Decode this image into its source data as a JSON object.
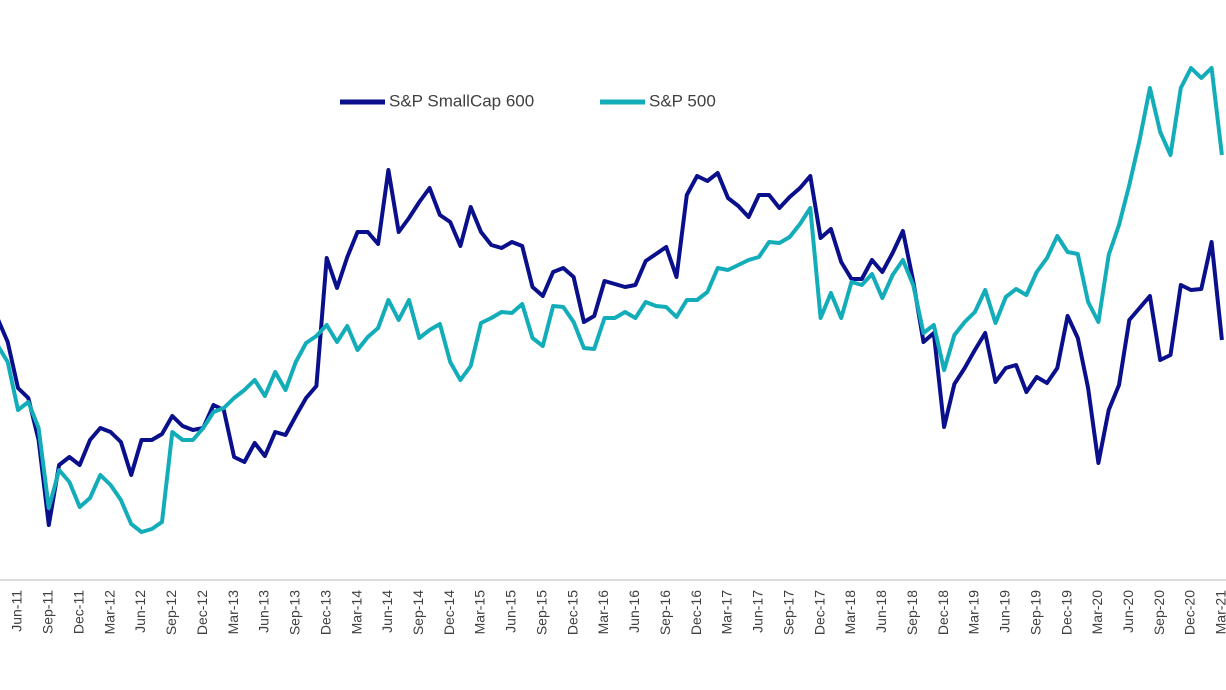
{
  "chart_data": {
    "type": "line",
    "categories": [
      null,
      null,
      "Jun-11",
      null,
      null,
      "Sep-11",
      null,
      null,
      "Dec-11",
      null,
      null,
      "Mar-12",
      null,
      null,
      "Jun-12",
      null,
      null,
      "Sep-12",
      null,
      null,
      "Dec-12",
      null,
      null,
      "Mar-13",
      null,
      null,
      "Jun-13",
      null,
      null,
      "Sep-13",
      null,
      null,
      "Dec-13",
      null,
      null,
      "Mar-14",
      null,
      null,
      "Jun-14",
      null,
      null,
      "Sep-14",
      null,
      null,
      "Dec-14",
      null,
      null,
      "Mar-15",
      null,
      null,
      "Jun-15",
      null,
      null,
      "Sep-15",
      null,
      null,
      "Dec-15",
      null,
      null,
      "Mar-16",
      null,
      null,
      "Jun-16",
      null,
      null,
      "Sep-16",
      null,
      null,
      "Dec-16",
      null,
      null,
      "Mar-17",
      null,
      null,
      "Jun-17",
      null,
      null,
      "Sep-17",
      null,
      null,
      "Dec-17",
      null,
      null,
      "Mar-18",
      null,
      null,
      "Jun-18",
      null,
      null,
      "Sep-18",
      null,
      null,
      "Dec-18",
      null,
      null,
      "Mar-19",
      null,
      null,
      "Jun-19",
      null,
      null,
      "Sep-19",
      null,
      null,
      "Dec-19",
      null,
      null,
      "Mar-20",
      null,
      null,
      "Jun-20",
      null,
      null,
      "Sep-20",
      null,
      null,
      "Dec-20",
      null,
      null,
      "Mar-21"
    ],
    "series": [
      {
        "name": "S&P SmallCap 600",
        "color": "#0a0f8c",
        "values": [
          262,
          238,
          192,
          182,
          140,
          55,
          115,
          123,
          115,
          140,
          152,
          148,
          138,
          105,
          140,
          140,
          146,
          164,
          154,
          150,
          152,
          175,
          170,
          123,
          118,
          137,
          124,
          148,
          145,
          164,
          182,
          194,
          322,
          292,
          323,
          348,
          348,
          336,
          410,
          348,
          362,
          378,
          392,
          365,
          358,
          334,
          373,
          348,
          335,
          332,
          338,
          334,
          293,
          284,
          308,
          312,
          303,
          258,
          264,
          299,
          296,
          293,
          295,
          319,
          326,
          333,
          303,
          385,
          404,
          399,
          407,
          382,
          374,
          363,
          385,
          385,
          372,
          383,
          392,
          404,
          342,
          351,
          318,
          301,
          301,
          320,
          308,
          327,
          349,
          299,
          238,
          247,
          153,
          196,
          212,
          230,
          247,
          198,
          212,
          215,
          188,
          203,
          197,
          212,
          264,
          242,
          192,
          117,
          170,
          195,
          260,
          272,
          284,
          220,
          225,
          295,
          290,
          291,
          338,
          240
        ]
      },
      {
        "name": "S&P 500",
        "color": "#12adb9",
        "values": [
          235,
          218,
          170,
          178,
          152,
          72,
          110,
          98,
          73,
          82,
          105,
          95,
          80,
          56,
          48,
          51,
          58,
          148,
          140,
          140,
          152,
          168,
          172,
          182,
          190,
          200,
          184,
          208,
          190,
          218,
          237,
          244,
          255,
          238,
          254,
          230,
          243,
          252,
          280,
          260,
          280,
          242,
          250,
          256,
          218,
          200,
          214,
          257,
          262,
          268,
          267,
          276,
          242,
          234,
          274,
          273,
          258,
          232,
          231,
          262,
          262,
          268,
          262,
          278,
          274,
          273,
          263,
          280,
          280,
          288,
          312,
          310,
          315,
          320,
          323,
          338,
          337,
          343,
          356,
          372,
          262,
          287,
          262,
          298,
          295,
          306,
          282,
          305,
          320,
          295,
          247,
          255,
          210,
          245,
          258,
          268,
          290,
          257,
          283,
          291,
          285,
          308,
          322,
          344,
          328,
          326,
          278,
          258,
          325,
          355,
          395,
          440,
          492,
          448,
          425,
          492,
          512,
          502,
          512,
          425
        ]
      }
    ],
    "ylim": [
      0,
      580
    ],
    "grid": false,
    "legend": "top"
  }
}
